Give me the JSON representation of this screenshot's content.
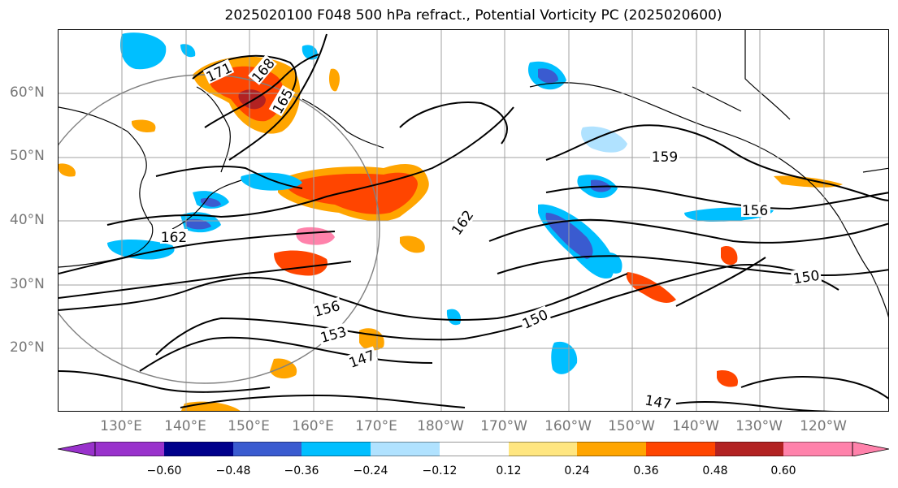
{
  "title": "2025020100 F048 500 hPa refract., Potential Vorticity PC (2025020600)",
  "lat_labels": [
    "60°N",
    "50°N",
    "40°N",
    "30°N",
    "20°N"
  ],
  "lon_labels": [
    "130°E",
    "140°E",
    "150°E",
    "160°E",
    "170°E",
    "180°W",
    "170°W",
    "160°W",
    "150°W",
    "140°W",
    "130°W",
    "120°W"
  ],
  "contour_labels": [
    "171",
    "168",
    "165",
    "162",
    "159",
    "156",
    "153",
    "150",
    "147"
  ],
  "colorbar": {
    "colors": [
      "#9932cc",
      "#00008b",
      "#3a5bd0",
      "#00bfff",
      "#b0e2ff",
      "#ffffff",
      "#ffe680",
      "#ffa500",
      "#ff4500",
      "#b22222",
      "#ff82ab"
    ],
    "ticks": [
      "−0.60",
      "−0.48",
      "−0.36",
      "−0.24",
      "−0.12",
      "0.12",
      "0.24",
      "0.36",
      "0.48",
      "0.60"
    ]
  }
}
